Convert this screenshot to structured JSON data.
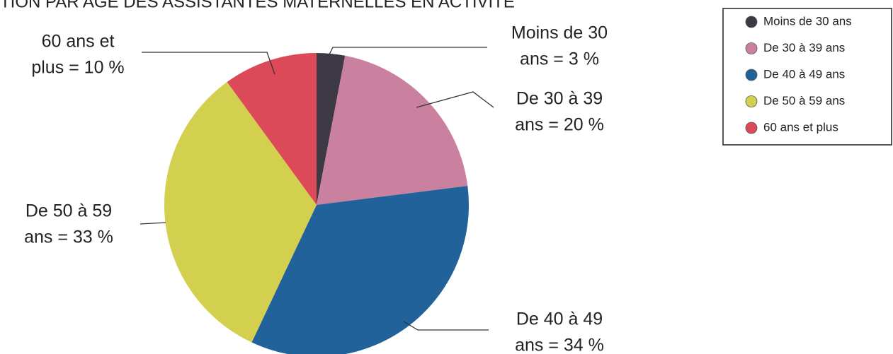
{
  "chart_data": {
    "type": "pie",
    "title": "TION PAR AGE DES ASSISTANTES MATERNELLES EN ACTIVITE",
    "categories": [
      "Moins de 30 ans",
      "De 30 à 39 ans",
      "De 40 à 49 ans",
      "De 50 à 59 ans",
      "60 ans et plus"
    ],
    "values": [
      3,
      20,
      34,
      33,
      10
    ],
    "value_labels": [
      [
        "Moins de 30",
        "ans = 3 %"
      ],
      [
        "De 30 à 39",
        "ans = 20 %"
      ],
      [
        "De 40 à 49",
        "ans = 34 %"
      ],
      [
        "De 50 à 59",
        "ans = 33 %"
      ],
      [
        "60 ans et",
        "plus = 10 %"
      ]
    ],
    "colors": [
      "#3d3a45",
      "#c9819f",
      "#22629a",
      "#d3d04f",
      "#dc4a5a"
    ],
    "legend": "upper right"
  }
}
